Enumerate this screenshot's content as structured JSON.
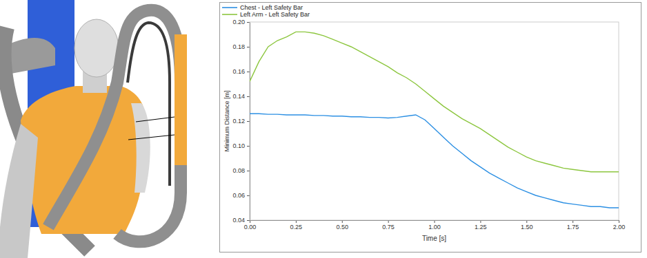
{
  "chart_data": {
    "type": "line",
    "x_label": "Time [s]",
    "y_label": "Minimum Distance [m]",
    "x": [
      0.0,
      0.05,
      0.1,
      0.15,
      0.2,
      0.25,
      0.3,
      0.35,
      0.4,
      0.45,
      0.5,
      0.55,
      0.6,
      0.65,
      0.7,
      0.75,
      0.8,
      0.85,
      0.9,
      0.95,
      1.0,
      1.05,
      1.1,
      1.15,
      1.2,
      1.25,
      1.3,
      1.35,
      1.4,
      1.45,
      1.5,
      1.55,
      1.6,
      1.65,
      1.7,
      1.75,
      1.8,
      1.85,
      1.9,
      1.95,
      2.0
    ],
    "series": [
      {
        "name": "Chest - Left Safety Bar",
        "color": "#2b8fe3",
        "values": [
          0.126,
          0.126,
          0.1255,
          0.1255,
          0.125,
          0.125,
          0.125,
          0.1245,
          0.1245,
          0.124,
          0.124,
          0.1235,
          0.1235,
          0.123,
          0.123,
          0.1225,
          0.123,
          0.124,
          0.125,
          0.121,
          0.114,
          0.107,
          0.1,
          0.094,
          0.088,
          0.083,
          0.078,
          0.074,
          0.07,
          0.066,
          0.063,
          0.06,
          0.058,
          0.056,
          0.054,
          0.053,
          0.052,
          0.051,
          0.051,
          0.05,
          0.05
        ]
      },
      {
        "name": "Left Arm - Left Safety Bar",
        "color": "#8cc63e",
        "values": [
          0.152,
          0.168,
          0.18,
          0.185,
          0.188,
          0.192,
          0.192,
          0.191,
          0.189,
          0.186,
          0.183,
          0.18,
          0.176,
          0.172,
          0.168,
          0.164,
          0.159,
          0.155,
          0.15,
          0.144,
          0.138,
          0.132,
          0.127,
          0.122,
          0.118,
          0.114,
          0.109,
          0.104,
          0.099,
          0.095,
          0.091,
          0.088,
          0.086,
          0.084,
          0.082,
          0.081,
          0.08,
          0.079,
          0.079,
          0.079,
          0.079
        ]
      }
    ],
    "xlim": [
      0,
      2
    ],
    "xticks": [
      {
        "value": 0,
        "label": "0.00"
      },
      0.25,
      {
        "value": 0.5,
        "label": "0.50"
      },
      0.75,
      {
        "value": 1,
        "label": "1.00"
      },
      1.25,
      {
        "value": 1.5,
        "label": "1.50"
      },
      1.75,
      {
        "value": 2,
        "label": "2.00"
      }
    ],
    "ylim": [
      0.04,
      0.2
    ],
    "yticks": [
      0.04,
      0.06,
      0.08,
      {
        "value": 0.1,
        "label": "0.10"
      },
      0.12,
      0.14,
      0.16,
      0.18,
      {
        "value": 0.2,
        "label": "0.20"
      }
    ],
    "grid": false,
    "legend": "top-left"
  }
}
